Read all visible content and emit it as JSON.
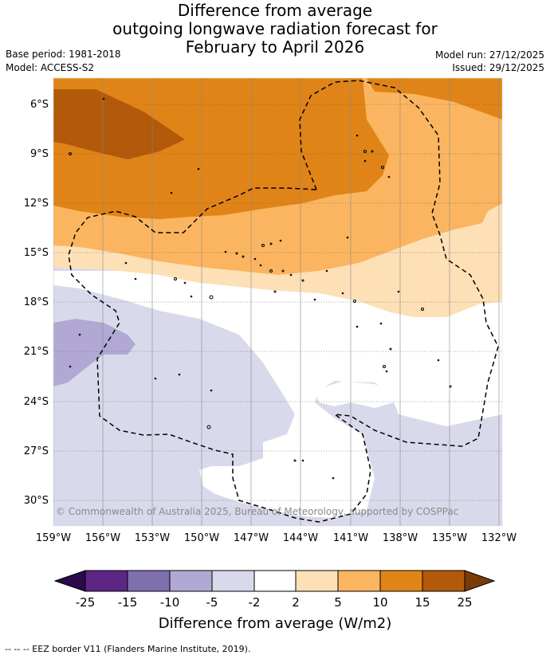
{
  "header": {
    "title_lines": [
      "Difference from average",
      "outgoing longwave radiation forecast for",
      "February to April 2026"
    ],
    "base_period": "Base period: 1981-2018",
    "model": "Model: ACCESS-S2",
    "model_run": "Model run: 27/12/2025",
    "issued": "Issued: 29/12/2025"
  },
  "map": {
    "lat_labels": [
      "6°S",
      "9°S",
      "12°S",
      "15°S",
      "18°S",
      "21°S",
      "24°S",
      "27°S",
      "30°S"
    ],
    "lon_labels": [
      "159°W",
      "156°W",
      "153°W",
      "150°W",
      "147°W",
      "144°W",
      "141°W",
      "138°W",
      "135°W",
      "132°W"
    ],
    "copyright": "© Commonwealth of Australia 2025, Bureau of Meteorology, supported by COSPPac",
    "border_legend": "-- -- -- EEZ border V11 (Flanders Marine Institute, 2019)."
  },
  "legend": {
    "title": "Difference from average (W/m2)",
    "tick_labels": [
      "-25",
      "-15",
      "-10",
      "-5",
      "-2",
      "2",
      "5",
      "10",
      "15",
      "25"
    ],
    "colors": {
      "below_min": "#2a0a4a",
      "bins": [
        "#5c2586",
        "#7f6fae",
        "#b1a9d3",
        "#d9d9ec",
        "#ffffff",
        "#fde0b6",
        "#fbb560",
        "#e08418",
        "#b3590a"
      ],
      "above_max": "#7a3a06"
    }
  }
}
